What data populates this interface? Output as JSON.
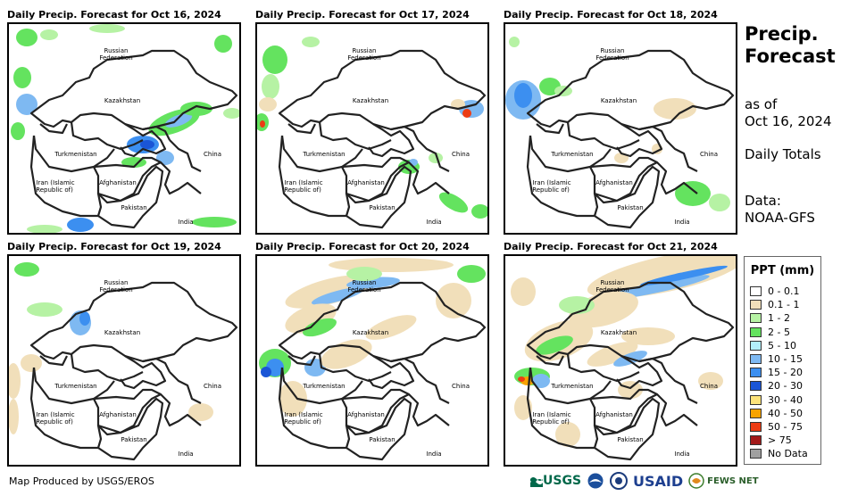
{
  "panels": [
    {
      "title": "Daily Precip. Forecast for Oct 16, 2024"
    },
    {
      "title": "Daily Precip. Forecast for Oct 17, 2024"
    },
    {
      "title": "Daily Precip. Forecast for Oct 18, 2024"
    },
    {
      "title": "Daily Precip. Forecast for Oct 19, 2024"
    },
    {
      "title": "Daily Precip. Forecast for Oct 20, 2024"
    },
    {
      "title": "Daily Precip. Forecast for Oct 21, 2024"
    }
  ],
  "map_labels": {
    "russia": "Russian",
    "russia2": "Federation",
    "kazakhstan": "Kazakhstan",
    "turkmenistan": "Turkmenistan",
    "china": "China",
    "iran": "Iran  (Islamic",
    "iran2": "Republic of)",
    "afghanistan": "Afghanistan",
    "pakistan": "Pakistan",
    "india": "India"
  },
  "side": {
    "title_line1": "Precip.",
    "title_line2": "Forecast",
    "asof_line1": "as of",
    "asof_line2": "Oct 16, 2024",
    "totals": "Daily Totals",
    "data_line1": "Data:",
    "data_line2": "NOAA-GFS"
  },
  "legend": {
    "title": "PPT (mm)",
    "items": [
      {
        "label": "0 - 0.1",
        "color": "#ffffff"
      },
      {
        "label": "0.1 - 1",
        "color": "#f1dfba"
      },
      {
        "label": "1 - 2",
        "color": "#b6f2a4"
      },
      {
        "label": "2 - 5",
        "color": "#64e35f"
      },
      {
        "label": "5 - 10",
        "color": "#b3effc"
      },
      {
        "label": "10 - 15",
        "color": "#7eb9f2"
      },
      {
        "label": "15 - 20",
        "color": "#3c8ff0"
      },
      {
        "label": "20 - 30",
        "color": "#1a55d6"
      },
      {
        "label": "30 - 40",
        "color": "#fde37a"
      },
      {
        "label": "40 - 50",
        "color": "#f7a300"
      },
      {
        "label": "50 - 75",
        "color": "#ec3c14"
      },
      {
        "label": "> 75",
        "color": "#a31a1a"
      },
      {
        "label": "No Data",
        "color": "#a0a0a0"
      }
    ]
  },
  "credit": "Map Produced by USGS/EROS",
  "logos": {
    "usgs": "USGS",
    "usaid": "USAID",
    "fews": "FEWS NET"
  }
}
